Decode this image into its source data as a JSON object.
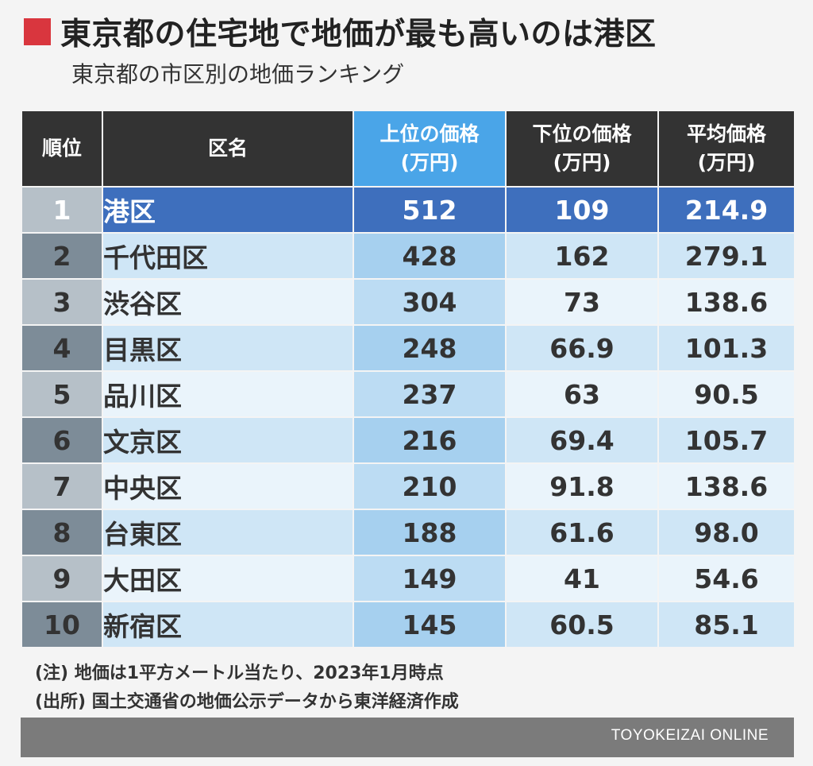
{
  "header": {
    "accent_color": "#d9363e",
    "title": "東京都の住宅地で地価が最も高いのは港区",
    "subtitle": "東京都の市区別の地価ランキング"
  },
  "chart_data": {
    "type": "table",
    "columns": [
      {
        "line1": "順位",
        "line2": ""
      },
      {
        "line1": "区名",
        "line2": ""
      },
      {
        "line1": "上位の価格",
        "line2": "(万円)"
      },
      {
        "line1": "下位の価格",
        "line2": "(万円)"
      },
      {
        "line1": "平均価格",
        "line2": "(万円)"
      }
    ],
    "rows": [
      {
        "rank": "1",
        "name": "港区",
        "upper": "512",
        "lower": "109",
        "average": "214.9"
      },
      {
        "rank": "2",
        "name": "千代田区",
        "upper": "428",
        "lower": "162",
        "average": "279.1"
      },
      {
        "rank": "3",
        "name": "渋谷区",
        "upper": "304",
        "lower": "73",
        "average": "138.6"
      },
      {
        "rank": "4",
        "name": "目黒区",
        "upper": "248",
        "lower": "66.9",
        "average": "101.3"
      },
      {
        "rank": "5",
        "name": "品川区",
        "upper": "237",
        "lower": "63",
        "average": "90.5"
      },
      {
        "rank": "6",
        "name": "文京区",
        "upper": "216",
        "lower": "69.4",
        "average": "105.7"
      },
      {
        "rank": "7",
        "name": "中央区",
        "upper": "210",
        "lower": "91.8",
        "average": "138.6"
      },
      {
        "rank": "8",
        "name": "台東区",
        "upper": "188",
        "lower": "61.6",
        "average": "98.0"
      },
      {
        "rank": "9",
        "name": "大田区",
        "upper": "149",
        "lower": "41",
        "average": "54.6"
      },
      {
        "rank": "10",
        "name": "新宿区",
        "upper": "145",
        "lower": "60.5",
        "average": "85.1"
      }
    ]
  },
  "notes": [
    "(注) 地価は1平方メートル当たり、2023年1月時点",
    "(出所) 国土交通省の地価公示データから東洋経済作成"
  ],
  "footer": {
    "brand": "TOYOKEIZAI ONLINE"
  }
}
